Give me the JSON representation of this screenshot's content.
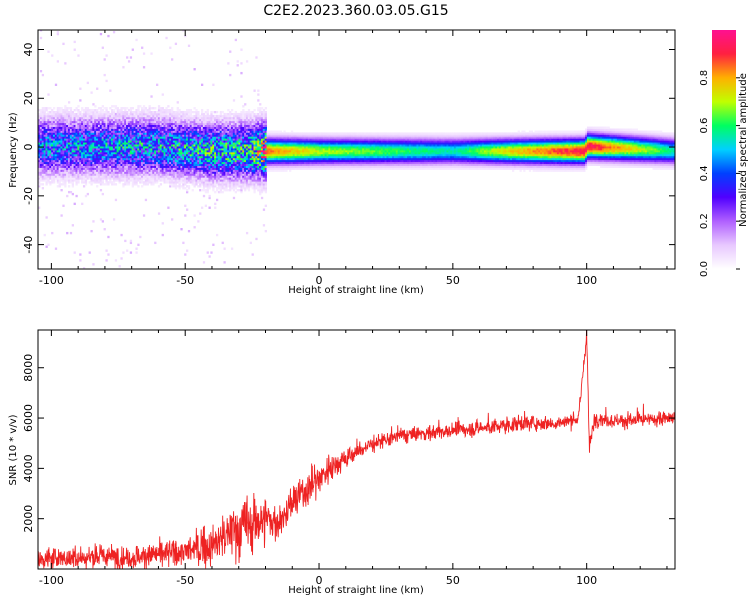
{
  "title": "C2E2.2023.360.03.05.G15",
  "chart_data": [
    {
      "type": "heatmap",
      "title": "C2E2.2023.360.03.05.G15",
      "xlabel": "Height of straight line (km)",
      "ylabel": "Frequency (Hz)",
      "xlim": [
        -105,
        133
      ],
      "ylim": [
        -50,
        48
      ],
      "xticks": [
        -100,
        -50,
        0,
        50,
        100
      ],
      "yticks": [
        -40,
        -20,
        0,
        20,
        40
      ],
      "colorbar": {
        "label": "Normalized spectral amplitude",
        "range": [
          0,
          1
        ],
        "ticks": [
          0.0,
          0.2,
          0.4,
          0.6,
          0.8
        ],
        "colormap": [
          "#ffffff",
          "#e8c8ff",
          "#b060ff",
          "#5000ff",
          "#0040ff",
          "#00d0ff",
          "#00ff60",
          "#c0ff00",
          "#ffb000",
          "#ff2040",
          "#ff1090"
        ]
      },
      "ridge": {
        "x": [
          -105,
          -60,
          -40,
          -25,
          -20,
          0,
          50,
          70,
          99,
          100,
          133
        ],
        "frequency_hz": [
          0,
          0,
          -2,
          -2,
          -2,
          -2,
          -2,
          -2,
          -2,
          0,
          -2
        ],
        "peak_amplitude": [
          0.45,
          0.5,
          0.55,
          0.6,
          0.85,
          0.7,
          0.55,
          0.75,
          0.95,
          0.95,
          0.55
        ]
      },
      "grid": false
    },
    {
      "type": "line",
      "xlabel": "Height of straight line (km)",
      "ylabel": "SNR (10 * v/v)",
      "xlim": [
        -105,
        133
      ],
      "ylim": [
        0,
        9500
      ],
      "xticks": [
        -100,
        -50,
        0,
        50,
        100
      ],
      "yticks": [
        2000,
        4000,
        6000,
        8000
      ],
      "color": "#ee2222",
      "series": [
        {
          "x": [
            -105,
            -90,
            -80,
            -70,
            -60,
            -50,
            -40,
            -35,
            -30,
            -25,
            -20,
            -15,
            -10,
            -5,
            0,
            5,
            10,
            15,
            20,
            25,
            30,
            40,
            50,
            60,
            70,
            75,
            80,
            90,
            97,
            99,
            100,
            101,
            103,
            110,
            120,
            133
          ],
          "values": [
            400,
            450,
            500,
            450,
            600,
            700,
            900,
            1300,
            1600,
            1800,
            2000,
            1800,
            2600,
            3100,
            3600,
            4100,
            4400,
            4700,
            5000,
            5100,
            5300,
            5400,
            5500,
            5600,
            5700,
            5800,
            5800,
            5800,
            6000,
            8200,
            9400,
            4800,
            6000,
            5900,
            5900,
            6000
          ],
          "noise_amplitude": [
            400,
            400,
            450,
            400,
            450,
            500,
            650,
            900,
            1100,
            1100,
            900,
            600,
            600,
            650,
            600,
            450,
            400,
            350,
            300,
            300,
            280,
            280,
            280,
            280,
            280,
            280,
            260,
            260,
            260,
            300,
            300,
            300,
            280,
            260,
            260,
            260
          ]
        }
      ],
      "grid": false
    }
  ]
}
